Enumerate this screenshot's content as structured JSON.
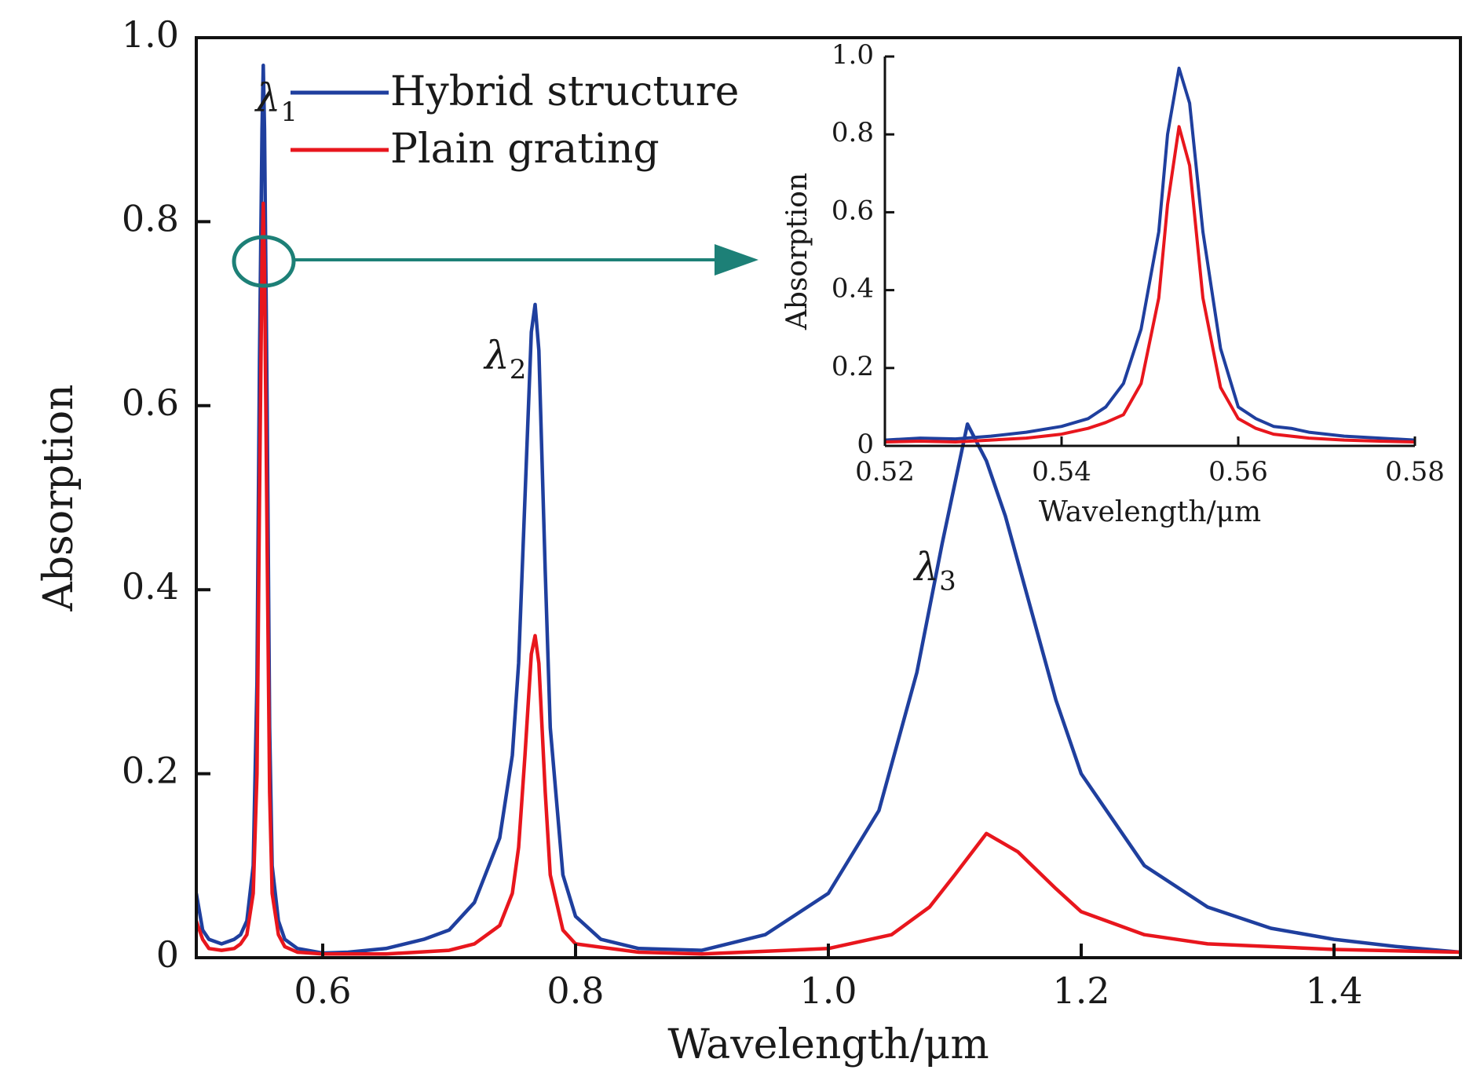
{
  "chart_data": [
    {
      "type": "line",
      "xlabel": "Wavelength/μm",
      "ylabel": "Absorption",
      "xlim": [
        0.5,
        1.5
      ],
      "ylim": [
        0,
        1.0
      ],
      "xticks": [
        0.6,
        0.8,
        1.0,
        1.2,
        1.4
      ],
      "xtick_labels": [
        "0.6",
        "0.8",
        "1.0",
        "1.2",
        "1.4"
      ],
      "yticks": [
        0,
        0.2,
        0.4,
        0.6,
        0.8,
        1.0
      ],
      "ytick_labels": [
        "0",
        "0.2",
        "0.4",
        "0.6",
        "0.8",
        "1.0"
      ],
      "legend": "top-left",
      "grid": false,
      "annotations": [
        {
          "symbol": "λ",
          "subscript": "1",
          "x": 0.547,
          "y": 0.92
        },
        {
          "symbol": "λ",
          "subscript": "2",
          "x": 0.728,
          "y": 0.64
        },
        {
          "symbol": "λ",
          "subscript": "3",
          "x": 1.068,
          "y": 0.41
        }
      ],
      "series": [
        {
          "name": "Hybrid structure",
          "color": "#1f3f9e",
          "x": [
            0.5,
            0.505,
            0.51,
            0.52,
            0.53,
            0.535,
            0.54,
            0.545,
            0.548,
            0.55,
            0.552,
            0.553,
            0.554,
            0.556,
            0.558,
            0.56,
            0.565,
            0.57,
            0.58,
            0.6,
            0.62,
            0.65,
            0.68,
            0.7,
            0.72,
            0.74,
            0.75,
            0.755,
            0.76,
            0.765,
            0.768,
            0.771,
            0.776,
            0.78,
            0.79,
            0.8,
            0.82,
            0.85,
            0.9,
            0.95,
            1.0,
            1.04,
            1.07,
            1.09,
            1.11,
            1.125,
            1.14,
            1.16,
            1.18,
            1.2,
            1.25,
            1.3,
            1.35,
            1.4,
            1.45,
            1.5
          ],
          "y": [
            0.07,
            0.03,
            0.02,
            0.015,
            0.02,
            0.025,
            0.04,
            0.1,
            0.3,
            0.65,
            0.9,
            0.97,
            0.9,
            0.6,
            0.25,
            0.1,
            0.04,
            0.02,
            0.01,
            0.005,
            0.006,
            0.01,
            0.02,
            0.03,
            0.06,
            0.13,
            0.22,
            0.32,
            0.5,
            0.68,
            0.71,
            0.66,
            0.42,
            0.25,
            0.09,
            0.045,
            0.02,
            0.01,
            0.008,
            0.025,
            0.07,
            0.16,
            0.31,
            0.45,
            0.58,
            0.54,
            0.48,
            0.38,
            0.28,
            0.2,
            0.1,
            0.055,
            0.032,
            0.02,
            0.012,
            0.006
          ]
        },
        {
          "name": "Plain grating",
          "color": "#e8161d",
          "x": [
            0.5,
            0.505,
            0.51,
            0.52,
            0.53,
            0.535,
            0.54,
            0.545,
            0.548,
            0.55,
            0.552,
            0.553,
            0.554,
            0.556,
            0.558,
            0.56,
            0.565,
            0.57,
            0.58,
            0.6,
            0.65,
            0.7,
            0.72,
            0.74,
            0.75,
            0.755,
            0.76,
            0.765,
            0.768,
            0.771,
            0.776,
            0.78,
            0.79,
            0.8,
            0.85,
            0.9,
            1.0,
            1.05,
            1.08,
            1.1,
            1.125,
            1.15,
            1.18,
            1.2,
            1.25,
            1.3,
            1.4,
            1.5
          ],
          "y": [
            0.04,
            0.02,
            0.01,
            0.008,
            0.01,
            0.015,
            0.025,
            0.07,
            0.2,
            0.5,
            0.76,
            0.82,
            0.75,
            0.45,
            0.18,
            0.07,
            0.025,
            0.012,
            0.006,
            0.004,
            0.004,
            0.008,
            0.015,
            0.035,
            0.07,
            0.12,
            0.22,
            0.33,
            0.35,
            0.32,
            0.18,
            0.09,
            0.03,
            0.015,
            0.006,
            0.004,
            0.01,
            0.025,
            0.055,
            0.09,
            0.135,
            0.115,
            0.075,
            0.05,
            0.025,
            0.015,
            0.009,
            0.006
          ]
        }
      ]
    },
    {
      "type": "line",
      "xlabel": "Wavelength/μm",
      "ylabel": "Absorption",
      "xlim": [
        0.52,
        0.58
      ],
      "ylim": [
        0,
        1.0
      ],
      "xticks": [
        0.52,
        0.54,
        0.56,
        0.58
      ],
      "xtick_labels": [
        "0.52",
        "0.54",
        "0.56",
        "0.58"
      ],
      "yticks": [
        0,
        0.2,
        0.4,
        0.6,
        0.8,
        1.0
      ],
      "ytick_labels": [
        "0",
        "0.2",
        "0.4",
        "0.6",
        "0.8",
        "1.0"
      ],
      "grid": false,
      "series": [
        {
          "name": "Hybrid structure",
          "color": "#1f3f9e",
          "x": [
            0.52,
            0.524,
            0.528,
            0.532,
            0.536,
            0.54,
            0.543,
            0.545,
            0.547,
            0.549,
            0.551,
            0.552,
            0.5533,
            0.5545,
            0.556,
            0.558,
            0.56,
            0.562,
            0.564,
            0.566,
            0.568,
            0.572,
            0.576,
            0.58
          ],
          "y": [
            0.015,
            0.02,
            0.018,
            0.025,
            0.035,
            0.05,
            0.07,
            0.1,
            0.16,
            0.3,
            0.55,
            0.8,
            0.97,
            0.88,
            0.55,
            0.25,
            0.1,
            0.07,
            0.05,
            0.045,
            0.035,
            0.025,
            0.02,
            0.015
          ]
        },
        {
          "name": "Plain grating",
          "color": "#e8161d",
          "x": [
            0.52,
            0.524,
            0.528,
            0.532,
            0.536,
            0.54,
            0.543,
            0.545,
            0.547,
            0.549,
            0.551,
            0.552,
            0.5533,
            0.5545,
            0.556,
            0.558,
            0.56,
            0.562,
            0.564,
            0.566,
            0.568,
            0.572,
            0.576,
            0.58
          ],
          "y": [
            0.01,
            0.012,
            0.01,
            0.015,
            0.02,
            0.03,
            0.045,
            0.06,
            0.08,
            0.16,
            0.38,
            0.62,
            0.82,
            0.72,
            0.38,
            0.15,
            0.07,
            0.045,
            0.03,
            0.025,
            0.02,
            0.015,
            0.012,
            0.01
          ]
        }
      ]
    }
  ]
}
